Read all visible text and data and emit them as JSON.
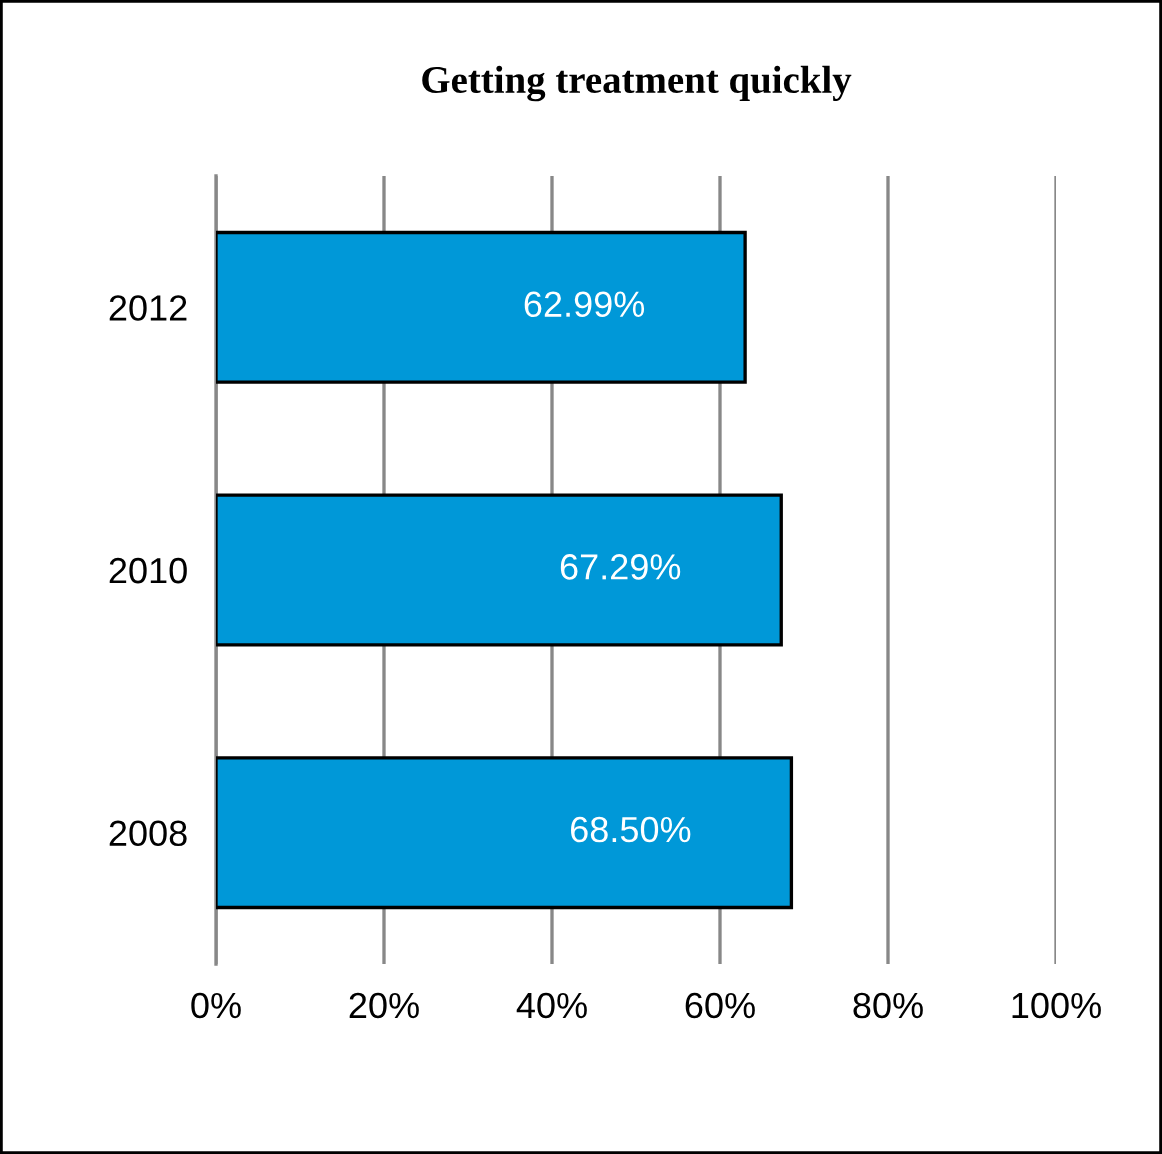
{
  "chart_data": {
    "type": "bar",
    "orientation": "horizontal",
    "title": "Getting treatment quickly",
    "categories": [
      "2012",
      "2010",
      "2008"
    ],
    "values": [
      62.99,
      67.29,
      68.5
    ],
    "value_labels": [
      "62.99%",
      "67.29%",
      "68.50%"
    ],
    "color": "#0098d8",
    "xlim": [
      0,
      100
    ],
    "xticks": [
      {
        "value": 0,
        "label": "0%"
      },
      {
        "value": 20,
        "label": "20%"
      },
      {
        "value": 40,
        "label": "40%"
      },
      {
        "value": 60,
        "label": "60%"
      },
      {
        "value": 80,
        "label": "80%"
      },
      {
        "value": 100,
        "label": "100%"
      }
    ],
    "grid": "x",
    "legend": false
  }
}
